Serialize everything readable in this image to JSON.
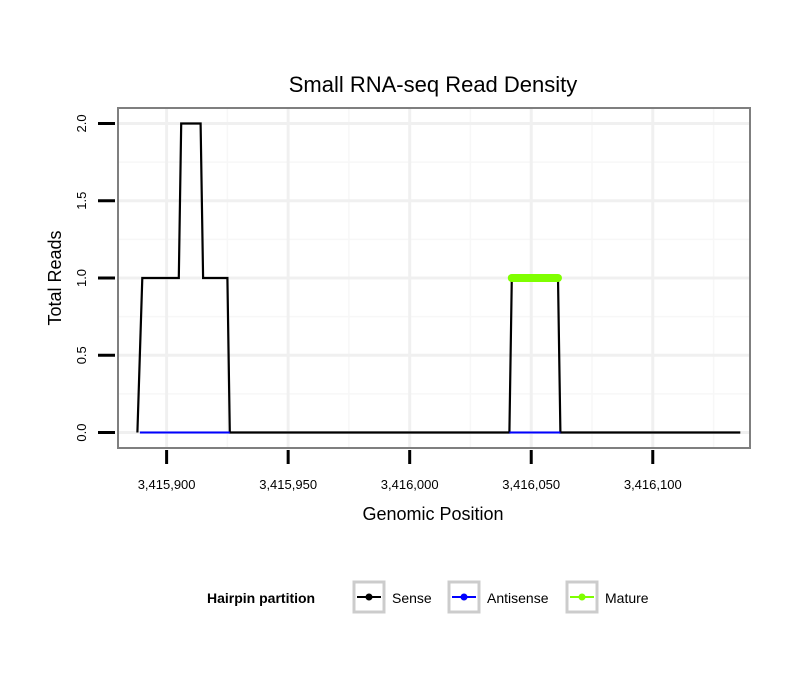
{
  "chart_data": {
    "type": "line",
    "title": "Small RNA-seq Read Density",
    "xlabel": "Genomic Position",
    "ylabel": "Total Reads",
    "xlim": [
      3415880,
      3416140
    ],
    "ylim": [
      -0.1,
      2.1
    ],
    "x_ticks": [
      3415900,
      3415950,
      3416000,
      3416050,
      3416100
    ],
    "x_tick_labels": [
      "3,415,900",
      "3,415,950",
      "3,416,000",
      "3,416,050",
      "3,416,100"
    ],
    "y_ticks": [
      0.0,
      0.5,
      1.0,
      1.5,
      2.0
    ],
    "y_tick_labels": [
      "0.0",
      "0.5",
      "1.0",
      "1.5",
      "2.0"
    ],
    "grid": true,
    "legend": {
      "title": "Hairpin partition",
      "position": "bottom",
      "entries": [
        {
          "name": "Sense",
          "color": "#000000"
        },
        {
          "name": "Antisense",
          "color": "#0000ff"
        },
        {
          "name": "Mature",
          "color": "#7fff00"
        }
      ]
    },
    "series": [
      {
        "name": "Sense",
        "color": "#000000",
        "x": [
          3415888,
          3415890,
          3415905,
          3415906,
          3415914,
          3415915,
          3415925,
          3415926,
          3416041,
          3416042,
          3416061,
          3416062,
          3416136
        ],
        "y": [
          0,
          1,
          1,
          2,
          2,
          1,
          1,
          0,
          0,
          1,
          1,
          0,
          0
        ]
      },
      {
        "name": "Antisense",
        "color": "#0000ff",
        "x": [
          3415889,
          3415926,
          3416041,
          3416062
        ],
        "y": [
          0,
          0,
          0,
          0
        ],
        "segments": [
          [
            0,
            1
          ],
          [
            2,
            3
          ]
        ]
      },
      {
        "name": "Mature",
        "color": "#7fff00",
        "x": [
          3416042,
          3416061
        ],
        "y": [
          1,
          1
        ]
      }
    ]
  }
}
